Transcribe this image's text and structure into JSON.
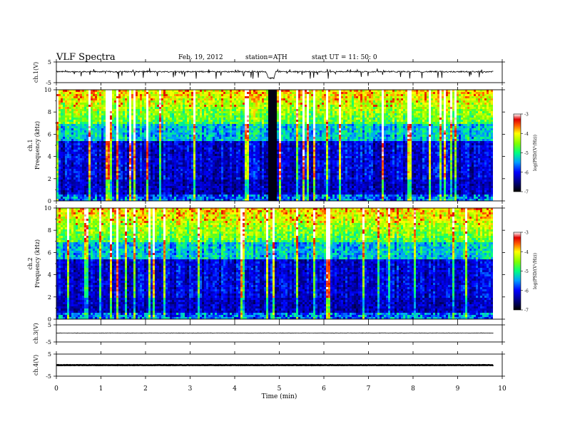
{
  "header": {
    "title": "VLF  Spectra",
    "date": "Feb. 19, 2012",
    "station": "station=ATH",
    "start": "start  UT  =    11: 50: 0"
  },
  "chart_data": [
    {
      "type": "line",
      "ylabel": "ch.1(V)",
      "ylim": [
        -5,
        5
      ],
      "y_ticks": [
        "5",
        "-5"
      ],
      "x": [
        0,
        4.7,
        4.75,
        4.88,
        4.92,
        9.8
      ],
      "y": [
        0.3,
        0.3,
        -2.8,
        -2.8,
        0.3,
        0.3
      ],
      "note": "noisy baseline near 0 V with downward spikes; dropout 4.75–4.9 min"
    },
    {
      "type": "heatmap",
      "ylabel_channel": "ch.1",
      "ylabel": "Frequency  (kHz)",
      "ylim": [
        0,
        10
      ],
      "y_ticks": [
        "0",
        "2",
        "4",
        "6",
        "8",
        "10"
      ],
      "x_range_min": [
        0,
        9.8
      ],
      "colorbar": {
        "label": "log(PSD/(V²/Hz))",
        "range": [
          -7,
          -3
        ],
        "ticks": [
          "-3",
          "-4",
          "-5",
          "-6",
          "-7"
        ]
      },
      "gap_min": [
        4.75,
        4.9
      ]
    },
    {
      "type": "heatmap",
      "ylabel_channel": "ch.2",
      "ylabel": "Frequency  (kHz)",
      "ylim": [
        0,
        10
      ],
      "y_ticks": [
        "0",
        "2",
        "4",
        "6",
        "8",
        "10"
      ],
      "x_range_min": [
        0,
        9.8
      ],
      "colorbar": {
        "label": "log(PSD/(V²/Hz))",
        "range": [
          -7,
          -3
        ],
        "ticks": [
          "-3",
          "-4",
          "-5",
          "-6",
          "-7"
        ]
      }
    },
    {
      "type": "line",
      "ylabel": "ch.3(V)",
      "ylim": [
        -5,
        5
      ],
      "y_ticks": [
        "5",
        "-5"
      ],
      "x": [
        0,
        9.8
      ],
      "y": [
        0.2,
        0.2
      ]
    },
    {
      "type": "line",
      "ylabel": "ch.4(V)",
      "ylim": [
        -5,
        5
      ],
      "y_ticks": [
        "5",
        "-5"
      ],
      "x": [
        0,
        9.8
      ],
      "y": [
        0,
        0
      ]
    }
  ],
  "xaxis": {
    "label": "Time  (min)",
    "range": [
      0,
      10
    ],
    "ticks": [
      "0",
      "1",
      "2",
      "3",
      "4",
      "5",
      "6",
      "7",
      "8",
      "9",
      "10"
    ]
  }
}
